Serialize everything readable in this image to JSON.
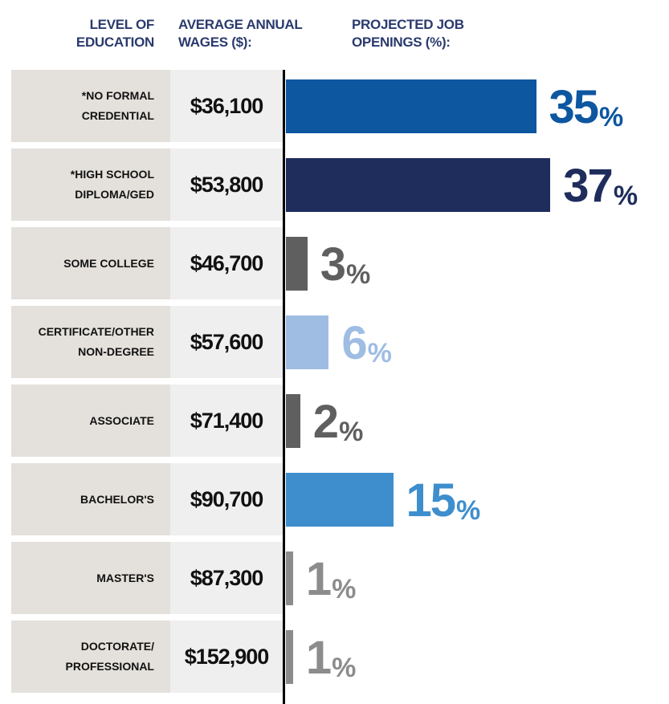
{
  "chart_data": {
    "type": "bar",
    "headers": {
      "education": "LEVEL OF EDUCATION",
      "wages": "AVERAGE ANNUAL WAGES ($):",
      "openings": "PROJECTED JOB OPENINGS (%):"
    },
    "categories": [
      "*NO FORMAL CREDENTIAL",
      "*HIGH SCHOOL DIPLOMA/GED",
      "SOME COLLEGE",
      "CERTIFICATE/OTHER NON-DEGREE",
      "ASSOCIATE",
      "BACHELOR'S",
      "MASTER'S",
      "DOCTORATE/ PROFESSIONAL"
    ],
    "wages": [
      "$36,100",
      "$53,800",
      "$46,700",
      "$57,600",
      "$71,400",
      "$90,700",
      "$87,300",
      "$152,900"
    ],
    "values": [
      35,
      37,
      3,
      6,
      2,
      15,
      1,
      1
    ],
    "value_labels": [
      "35%",
      "37%",
      "3%",
      "6%",
      "2%",
      "15%",
      "1%",
      "1%"
    ],
    "colors": [
      "#0d56a0",
      "#1f2d5c",
      "#5f5f5f",
      "#9fbde3",
      "#5f5f5f",
      "#3e8ecd",
      "#8c8c8c",
      "#8c8c8c"
    ]
  }
}
